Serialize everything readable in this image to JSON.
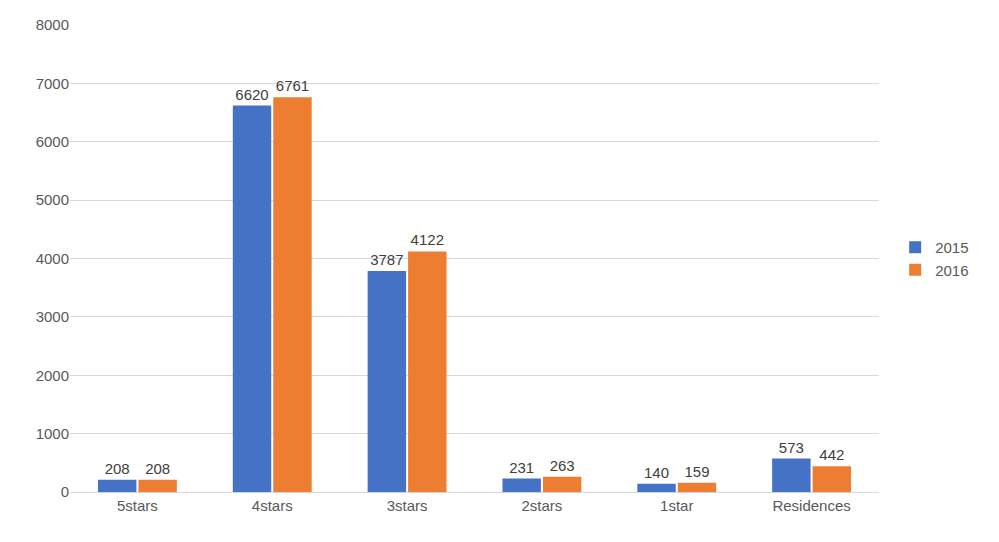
{
  "chart_data": {
    "type": "bar",
    "categories": [
      "5stars",
      "4stars",
      "3stars",
      "2stars",
      "1star",
      "Residences"
    ],
    "series": [
      {
        "name": "2015",
        "color": "#4472c4",
        "values": [
          208,
          6620,
          3787,
          231,
          140,
          573
        ]
      },
      {
        "name": "2016",
        "color": "#ed7d31",
        "values": [
          208,
          6761,
          4122,
          263,
          159,
          442
        ]
      }
    ],
    "ylim": [
      0,
      8000
    ],
    "yticks": [
      0,
      1000,
      2000,
      3000,
      4000,
      5000,
      6000,
      7000,
      8000
    ],
    "grid": true,
    "legend": "right",
    "data_labels": true
  }
}
